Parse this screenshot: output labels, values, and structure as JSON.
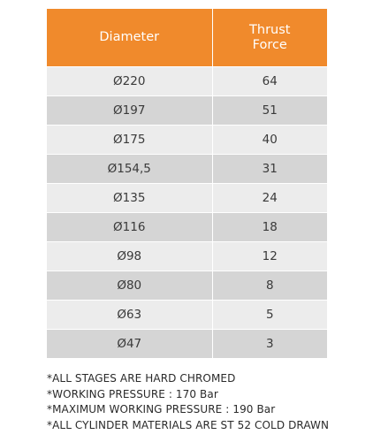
{
  "table": {
    "headers": {
      "diameter": "Diameter",
      "thrust_line1": "Thrust",
      "thrust_line2": "Force"
    },
    "rows": [
      {
        "diameter": "Ø220",
        "thrust": "64"
      },
      {
        "diameter": "Ø197",
        "thrust": "51"
      },
      {
        "diameter": "Ø175",
        "thrust": "40"
      },
      {
        "diameter": "Ø154,5",
        "thrust": "31"
      },
      {
        "diameter": "Ø135",
        "thrust": "24"
      },
      {
        "diameter": "Ø116",
        "thrust": "18"
      },
      {
        "diameter": "Ø98",
        "thrust": "12"
      },
      {
        "diameter": "Ø80",
        "thrust": "8"
      },
      {
        "diameter": "Ø63",
        "thrust": "5"
      },
      {
        "diameter": "Ø47",
        "thrust": "3"
      }
    ]
  },
  "notes": [
    "*ALL STAGES ARE HARD CHROMED",
    "*WORKING PRESSURE : 170 Bar",
    "*MAXIMUM WORKING PRESSURE : 190 Bar",
    "*ALL CYLINDER MATERIALS ARE ST 52 COLD DRAWN"
  ],
  "colors": {
    "header_bg": "#f08a2c",
    "row_light": "#ececec",
    "row_dark": "#d5d5d5"
  }
}
